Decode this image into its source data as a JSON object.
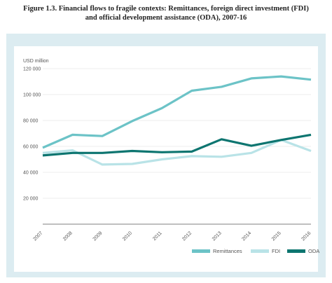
{
  "figure": {
    "title_line1": "Figure 1.3. Financial flows to fragile contexts: Remittances, foreign direct investment (FDI)",
    "title_line2": "and official development assistance (ODA), 2007-16"
  },
  "chart_data": {
    "type": "line",
    "ylabel": "USD million",
    "xlabel": "",
    "ylim": [
      0,
      120000
    ],
    "yticks": [
      0,
      20000,
      40000,
      60000,
      80000,
      100000,
      120000
    ],
    "ytick_labels": [
      "",
      "20 000",
      "40 000",
      "60 000",
      "80 000",
      "100 000",
      "120 000"
    ],
    "categories": [
      "2007",
      "2008",
      "2009",
      "2010",
      "2011",
      "2012",
      "2013",
      "2014",
      "2015",
      "2016"
    ],
    "grid": "horizontal",
    "legend_position": "bottom-right",
    "series": [
      {
        "name": "Remittances",
        "color": "#6cc3c7",
        "values": [
          59000,
          69000,
          68000,
          79500,
          89500,
          103000,
          106000,
          112500,
          114000,
          111500
        ]
      },
      {
        "name": "FDI",
        "color": "#b9e3e7",
        "values": [
          55000,
          57000,
          46000,
          46500,
          50000,
          52500,
          52000,
          55000,
          65000,
          56500
        ]
      },
      {
        "name": "ODA",
        "color": "#0d7570",
        "values": [
          53000,
          55000,
          55000,
          56500,
          55500,
          56000,
          65500,
          60500,
          65000,
          69000
        ]
      }
    ]
  }
}
